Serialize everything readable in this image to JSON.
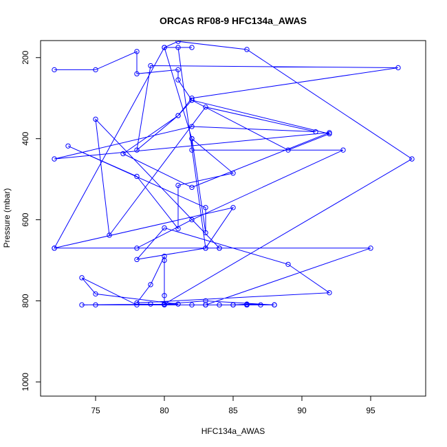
{
  "chart_data": {
    "type": "line",
    "title": "ORCAS RF08-9 HFC134a_AWAS",
    "xlabel": "HFC134a_AWAS",
    "ylabel": "Pressure (mbar)",
    "xlim": [
      71,
      99
    ],
    "ylim": [
      1035,
      158
    ],
    "y_reversed": true,
    "x_ticks": [
      75,
      80,
      85,
      90,
      95
    ],
    "y_ticks": [
      200,
      400,
      600,
      800,
      1000
    ],
    "grid": false,
    "line_color": "#0000ff",
    "marker": "open-circle",
    "series": [
      {
        "x": [
          72,
          75,
          78,
          78,
          81,
          81,
          82,
          92,
          89,
          82,
          81,
          78,
          79,
          97,
          82,
          81,
          77,
          82,
          92,
          72,
          82,
          91,
          83,
          76,
          75,
          84,
          72,
          78,
          82,
          93,
          82,
          82,
          85,
          81,
          81,
          78,
          73,
          83,
          83,
          82,
          80,
          81,
          86,
          98,
          80,
          83,
          88,
          82,
          86,
          87,
          86,
          86,
          86,
          85,
          84,
          83,
          83,
          95,
          84,
          83,
          85,
          72,
          80,
          82,
          81,
          83,
          78,
          80,
          89,
          92,
          78,
          79,
          80,
          80,
          80,
          80,
          78,
          74,
          75,
          81,
          75,
          83,
          85,
          86,
          88,
          80,
          79,
          74
        ],
        "y": [
          230,
          230,
          185,
          240,
          230,
          255,
          305,
          388,
          428,
          305,
          343,
          428,
          220,
          225,
          300,
          343,
          437,
          520,
          385,
          450,
          370,
          383,
          322,
          638,
          352,
          670,
          670,
          670,
          600,
          428,
          428,
          400,
          485,
          515,
          622,
          493,
          418,
          570,
          632,
          400,
          175,
          160,
          180,
          450,
          808,
          800,
          810,
          810,
          810,
          810,
          810,
          810,
          810,
          810,
          810,
          810,
          810,
          670,
          670,
          670,
          570,
          670,
          175,
          175,
          175,
          670,
          698,
          620,
          710,
          780,
          805,
          760,
          690,
          700,
          787,
          808,
          810,
          743,
          783,
          808,
          810,
          810,
          810,
          808,
          810,
          810,
          808,
          810
        ]
      }
    ]
  }
}
